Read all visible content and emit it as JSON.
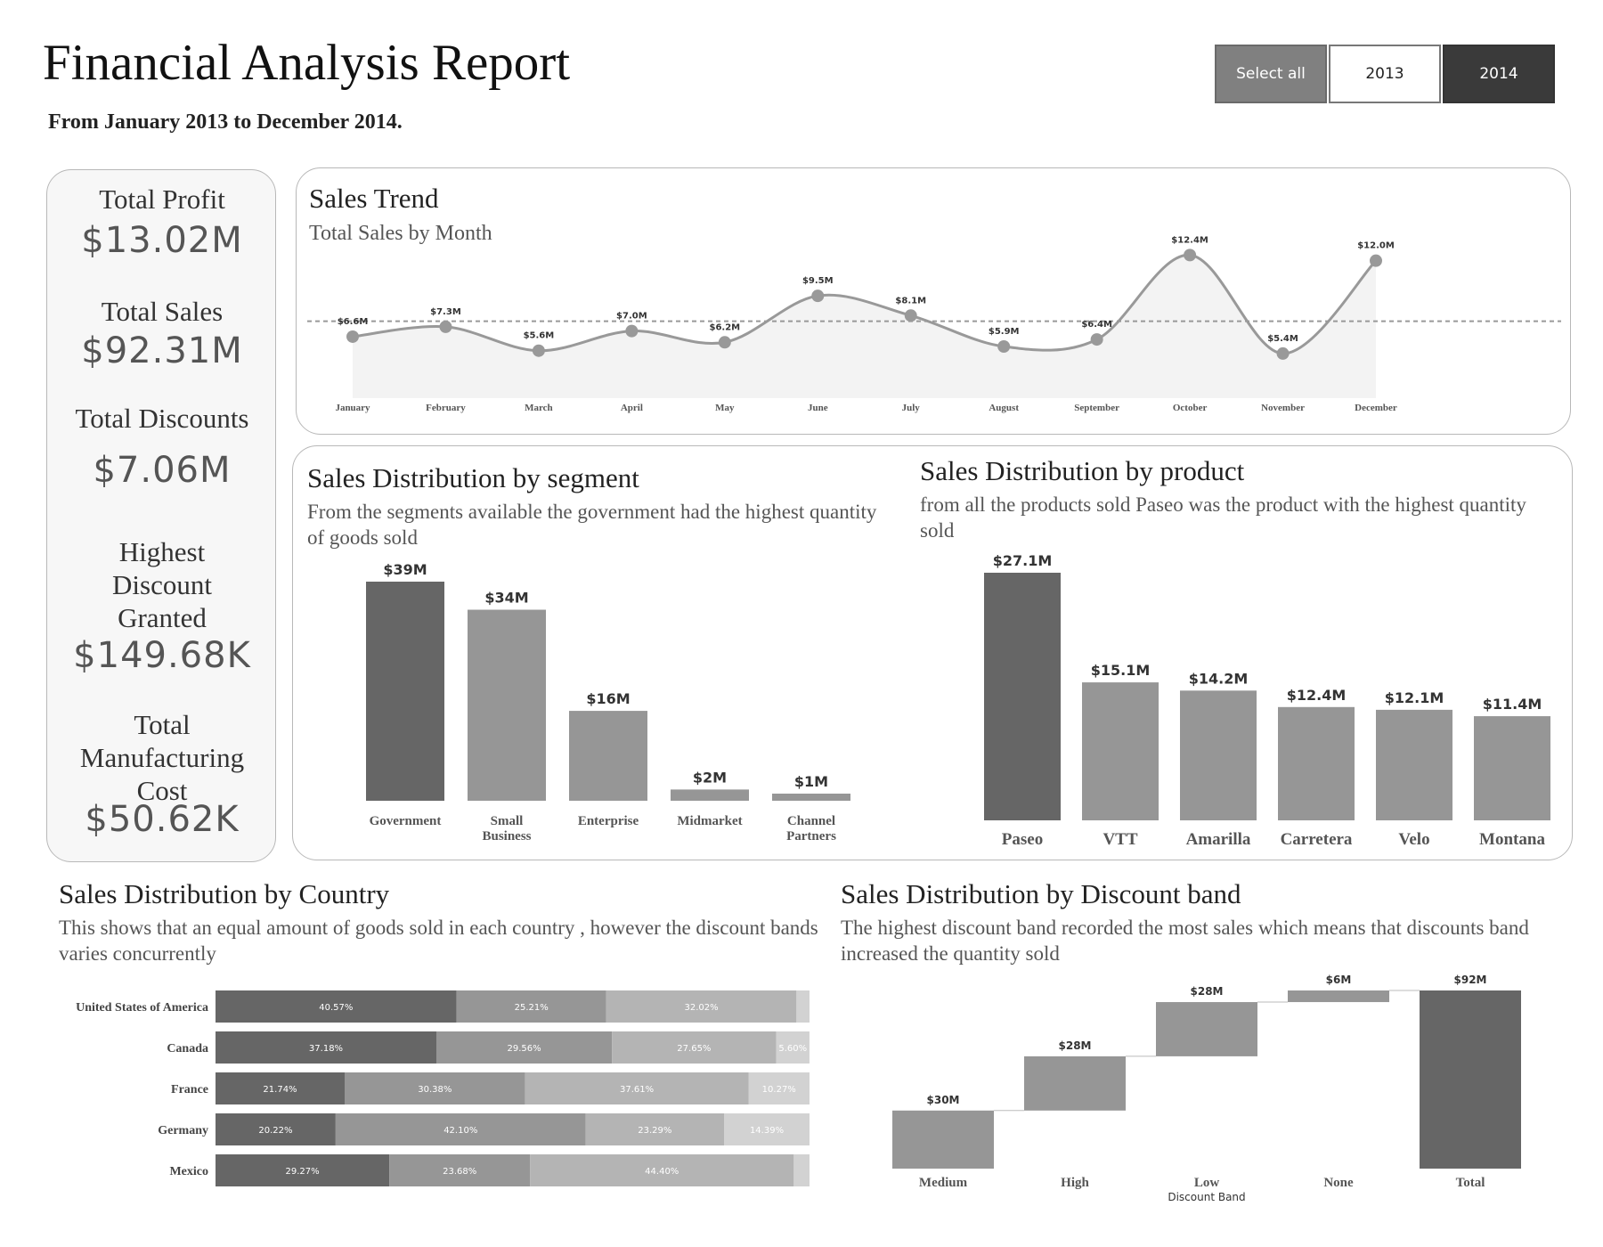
{
  "header": {
    "title": "Financial Analysis Report",
    "subtitle": "From January 2013 to December 2014.",
    "filters": {
      "select_all": "Select all",
      "year_2013": "2013",
      "year_2014": "2014"
    }
  },
  "kpis": {
    "total_profit": {
      "label": "Total Profit",
      "value": "$13.02M"
    },
    "total_sales": {
      "label": "Total Sales",
      "value": "$92.31M"
    },
    "total_discounts": {
      "label": "Total Discounts",
      "value": "$7.06M"
    },
    "highest_discount": {
      "label": "Highest Discount Granted",
      "value": "$149.68K"
    },
    "manufacturing_cost": {
      "label": "Total Manufacturing Cost",
      "value": "$50.62K"
    }
  },
  "sections": {
    "trend": {
      "title": "Sales Trend",
      "subtitle": "Total Sales by Month"
    },
    "segment": {
      "title": "Sales Distribution by segment",
      "desc": "From the segments available the government had the highest quantity of goods sold"
    },
    "product": {
      "title": "Sales Distribution by product",
      "desc": "from all the products sold Paseo was the product with the highest quantity sold"
    },
    "country": {
      "title": "Sales Distribution by Country",
      "desc": "This shows that an equal amount of goods sold in each country , however the discount bands varies concurrently"
    },
    "discount": {
      "title": "Sales Distribution by Discount band",
      "desc": "The highest discount band recorded the most sales which means that discounts band increased the quantity sold"
    }
  },
  "colors": {
    "dark": "#666666",
    "mid": "#969696",
    "light": "#b4b4b4",
    "lighter": "#d2d2d2",
    "line": "#999999",
    "area": "#f3f3f3"
  },
  "chart_data": [
    {
      "id": "trend",
      "type": "line",
      "x": [
        "January",
        "February",
        "March",
        "April",
        "May",
        "June",
        "July",
        "August",
        "September",
        "October",
        "November",
        "December"
      ],
      "values": [
        6.6,
        7.3,
        5.6,
        7.0,
        6.2,
        9.5,
        8.1,
        5.9,
        6.4,
        12.4,
        5.4,
        12.0
      ],
      "labels": [
        "$6.6M",
        "$7.3M",
        "$5.6M",
        "$7.0M",
        "$6.2M",
        "$9.5M",
        "$8.1M",
        "$5.9M",
        "$6.4M",
        "$12.4M",
        "$5.4M",
        "$12.0M"
      ],
      "reference_line": 7.7,
      "ylim": [
        4,
        13.5
      ]
    },
    {
      "id": "segment",
      "type": "bar",
      "categories": [
        "Government",
        "Small Business",
        "Enterprise",
        "Midmarket",
        "Channel Partners"
      ],
      "values": [
        39,
        34,
        16,
        2,
        1
      ],
      "labels": [
        "$39M",
        "$34M",
        "$16M",
        "$2M",
        "$1M"
      ],
      "ylim": [
        0,
        39
      ]
    },
    {
      "id": "product",
      "type": "bar",
      "categories": [
        "Paseo",
        "VTT",
        "Amarilla",
        "Carretera",
        "Velo",
        "Montana"
      ],
      "values": [
        27.1,
        15.1,
        14.2,
        12.4,
        12.1,
        11.4
      ],
      "labels": [
        "$27.1M",
        "$15.1M",
        "$14.2M",
        "$12.4M",
        "$12.1M",
        "$11.4M"
      ],
      "ylim": [
        0,
        27.1
      ]
    },
    {
      "id": "country",
      "type": "bar",
      "orientation": "horizontal-stacked-100",
      "categories": [
        "United States of America",
        "Canada",
        "France",
        "Germany",
        "Mexico"
      ],
      "series_values": [
        [
          40.57,
          25.21,
          32.02,
          2.2
        ],
        [
          37.18,
          29.56,
          27.65,
          5.6
        ],
        [
          21.74,
          30.38,
          37.61,
          10.27
        ],
        [
          20.22,
          42.1,
          23.29,
          14.39
        ],
        [
          29.27,
          23.68,
          44.4,
          2.65
        ]
      ],
      "segment_labels": [
        [
          "40.57%",
          "25.21%",
          "32.02%",
          ""
        ],
        [
          "37.18%",
          "29.56%",
          "27.65%",
          "5.60%"
        ],
        [
          "21.74%",
          "30.38%",
          "37.61%",
          "10.27%"
        ],
        [
          "20.22%",
          "42.10%",
          "23.29%",
          "14.39%"
        ],
        [
          "29.27%",
          "23.68%",
          "44.40%",
          ""
        ]
      ]
    },
    {
      "id": "discount",
      "type": "bar",
      "orientation": "waterfall",
      "categories": [
        "Medium",
        "High",
        "Low",
        "None",
        "Total"
      ],
      "values": [
        30,
        28,
        28,
        6,
        92
      ],
      "labels": [
        "$30M",
        "$28M",
        "$28M",
        "$6M",
        "$92M"
      ],
      "xlabel": "Discount Band",
      "ylim": [
        0,
        92
      ]
    }
  ]
}
